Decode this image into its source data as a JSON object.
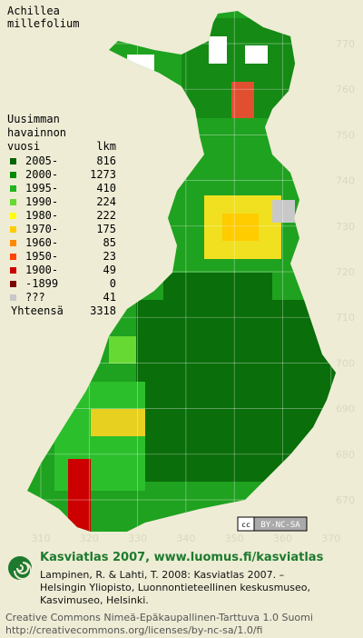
{
  "title": [
    "Achillea",
    "millefolium"
  ],
  "legend": {
    "heading": [
      "Uusimman",
      "havainnon",
      "vuosi"
    ],
    "count_heading": "lkm",
    "rows": [
      {
        "label": "2005-",
        "count": 816,
        "color": "#006400"
      },
      {
        "label": "2000-",
        "count": 1273,
        "color": "#008a00"
      },
      {
        "label": "1995-",
        "count": 410,
        "color": "#1fb51f"
      },
      {
        "label": "1990-",
        "count": 224,
        "color": "#66d933"
      },
      {
        "label": "1980-",
        "count": 222,
        "color": "#ffff00"
      },
      {
        "label": "1970-",
        "count": 175,
        "color": "#ffcc00"
      },
      {
        "label": "1960-",
        "count": 85,
        "color": "#ff8800"
      },
      {
        "label": "1950-",
        "count": 23,
        "color": "#ff4400"
      },
      {
        "label": "1900-",
        "count": 49,
        "color": "#cc0000"
      },
      {
        "label": "-1899",
        "count": 0,
        "color": "#7a0000"
      },
      {
        "label": "???",
        "count": 41,
        "color": "#c8c8c8"
      }
    ],
    "total_label": "Yhteensä",
    "total": 3318
  },
  "map": {
    "x_labels": [
      310,
      320,
      330,
      340,
      350,
      360,
      370
    ],
    "y_labels": [
      770,
      760,
      750,
      740,
      730,
      720,
      710,
      700,
      690,
      680,
      670
    ],
    "license_badge": "BY-NC-SA"
  },
  "footer": {
    "brand": "Kasviatlas 2007, www.luomus.fi/kasviatlas",
    "citation": [
      "Lampinen, R. & Lahti, T. 2008: Kasviatlas 2007. –",
      "Helsingin Yliopisto, Luonnontieteellinen keskusmuseo,",
      "Kasvimuseo, Helsinki."
    ],
    "license": [
      "Creative Commons Nimeä-Epäkaupallinen-Tarttuva 1.0 Suomi",
      "http://creativecommons.org/licenses/by-nc-sa/1.0/fi"
    ]
  }
}
